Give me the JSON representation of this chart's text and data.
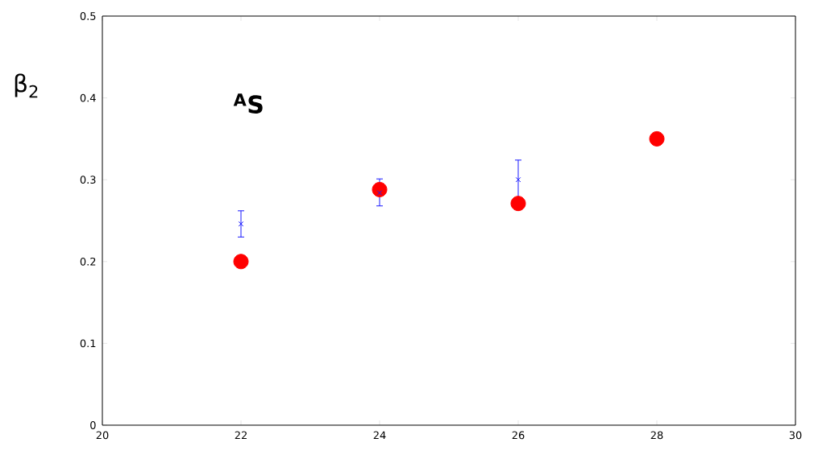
{
  "chart_data": {
    "type": "scatter",
    "ylabel": "β$_{2}$",
    "annotations": [
      "$^{A}$S"
    ],
    "x": [
      22,
      24,
      26,
      28
    ],
    "series": [
      {
        "color": "#ff0000",
        "marker": "circle",
        "values": [
          0.2,
          0.288,
          0.271,
          0.35
        ]
      },
      {
        "color": "#1a1aff",
        "marker": "cross",
        "x": [
          22,
          24,
          26
        ],
        "values": [
          0.246,
          0.284,
          0.3
        ],
        "errors": [
          [
            0.23,
            0.262
          ],
          [
            0.268,
            0.301
          ],
          [
            0.276,
            0.324
          ]
        ]
      }
    ],
    "xlim": [
      20,
      30
    ],
    "xticks": [
      20,
      22,
      24,
      26,
      28,
      30
    ],
    "ylim": [
      0,
      0.5
    ],
    "yticks": [
      0,
      0.1,
      0.2,
      0.3,
      0.4,
      0.5
    ],
    "grid": false
  }
}
